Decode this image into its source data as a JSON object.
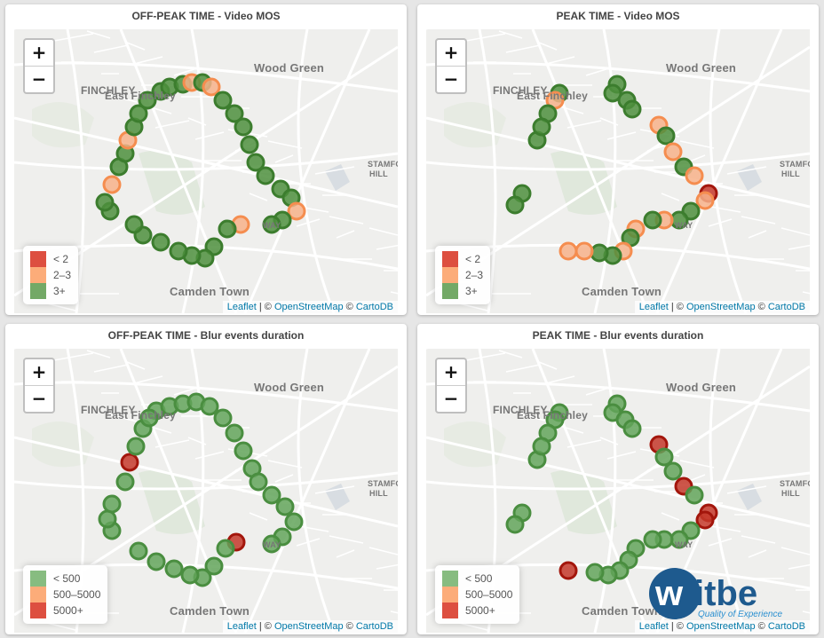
{
  "panels": [
    {
      "title": "OFF-PEAK TIME - Video MOS",
      "legend": [
        {
          "label": "< 2",
          "color": "#d7301f"
        },
        {
          "label": "2–3",
          "color": "#fc9d62"
        },
        {
          "label": "3+",
          "color": "#5a9a4b"
        }
      ]
    },
    {
      "title": "PEAK TIME - Video MOS",
      "legend": [
        {
          "label": "< 2",
          "color": "#d7301f"
        },
        {
          "label": "2–3",
          "color": "#fc9d62"
        },
        {
          "label": "3+",
          "color": "#5a9a4b"
        }
      ]
    },
    {
      "title": "OFF-PEAK TIME - Blur events duration",
      "legend": [
        {
          "label": "< 500",
          "color": "#72b06a"
        },
        {
          "label": "500–5000",
          "color": "#fc9d62"
        },
        {
          "label": "5000+",
          "color": "#d7301f"
        }
      ]
    },
    {
      "title": "PEAK TIME - Blur events duration",
      "legend": [
        {
          "label": "< 500",
          "color": "#72b06a"
        },
        {
          "label": "500–5000",
          "color": "#fc9d62"
        },
        {
          "label": "5000+",
          "color": "#d7301f"
        }
      ]
    }
  ],
  "zoom": {
    "in": "+",
    "out": "−"
  },
  "places": {
    "finchley": "FINCHLEY",
    "wood_green": "Wood Green",
    "east_finchley": "East Finchley",
    "stamford_hill_1": "STAMFO",
    "stamford_hill_2": "HILL",
    "holloway": "WAY",
    "camden_town": "Camden Town"
  },
  "attribution": {
    "leaflet": "Leaflet",
    "sep": " | © ",
    "osm": "OpenStreetMap",
    "sep2": " © ",
    "carto": "CartoDB"
  },
  "logo": {
    "brand": "witbe",
    "tagline": "Quality of Experience"
  },
  "colors": {
    "good": "#3f8f32",
    "mid": "#f6a16e",
    "bad": "#c0281a"
  }
}
